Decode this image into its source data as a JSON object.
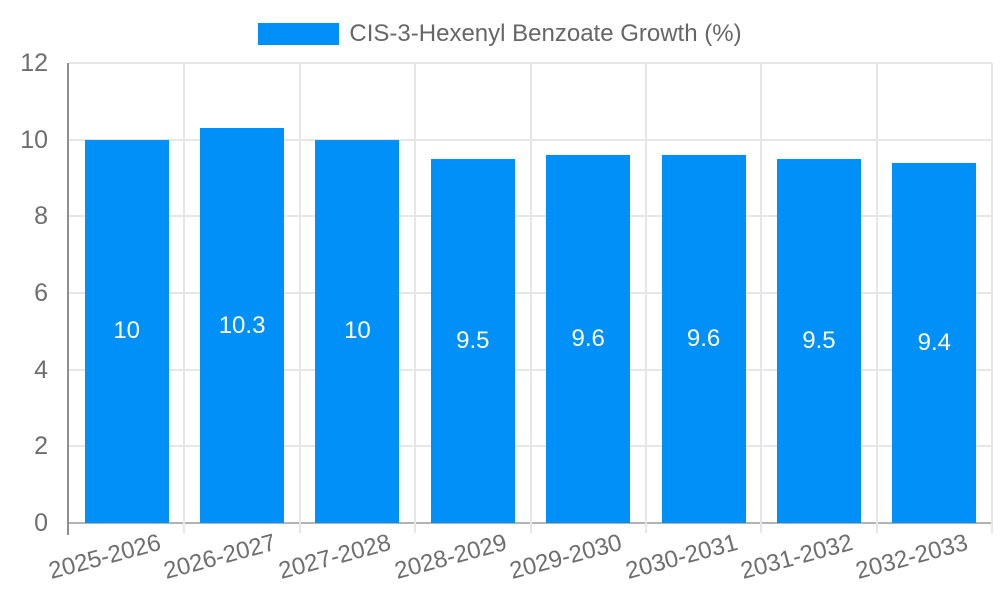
{
  "chart_data": {
    "type": "bar",
    "title": "CIS-3-Hexenyl Benzoate Growth (%)",
    "categories": [
      "2025-2026",
      "2026-2027",
      "2027-2028",
      "2028-2029",
      "2029-2030",
      "2030-2031",
      "2031-2032",
      "2032-2033"
    ],
    "values": [
      10,
      10.3,
      10,
      9.5,
      9.6,
      9.6,
      9.5,
      9.4
    ],
    "value_labels": [
      "10",
      "10.3",
      "10",
      "9.5",
      "9.6",
      "9.6",
      "9.5",
      "9.4"
    ],
    "xlabel": "",
    "ylabel": "",
    "ylim": [
      0,
      12
    ],
    "yticks": [
      0,
      2,
      4,
      6,
      8,
      10,
      12
    ],
    "grid": "on",
    "legend_position": "top-center",
    "colors": {
      "bar_fill": "#0090f8",
      "bar_label_text": "#ffffff",
      "gridline": "#e6e6e6",
      "y_axis_line": "#8f8f8f",
      "x_axis_line": "#b3b3b3",
      "tick_label_text": "#6e6e6e",
      "legend_text": "#666666",
      "background": "#ffffff"
    }
  }
}
